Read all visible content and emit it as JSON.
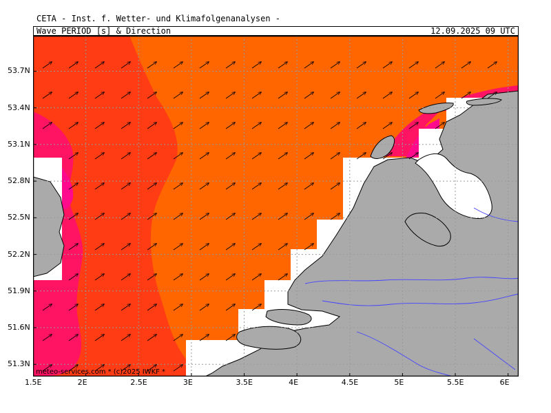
{
  "header": {
    "title": "CETA - Inst. f. Wetter- und Klimafolgenanalysen -",
    "parameter": "Wave_PERIOD [s] & Direction",
    "valid_time": "12.09.2025 09 UTC"
  },
  "credit": "meteo-services.com * (c)2025 IWKF *",
  "axes": {
    "lon_labels": [
      "1.5E",
      "2E",
      "2.5E",
      "3E",
      "3.5E",
      "4E",
      "4.5E",
      "5E",
      "5.5E",
      "6E"
    ],
    "lat_labels": [
      "53.7N",
      "53.4N",
      "53.1N",
      "52.8N",
      "52.5N",
      "52.2N",
      "51.9N",
      "51.6N",
      "51.3N"
    ],
    "lon_range": [
      1.5,
      6.1
    ],
    "lat_range": [
      51.2,
      53.99
    ],
    "grid": true
  },
  "colors": {
    "frame": "#000000",
    "land": "#aaaaaa",
    "coast": "#000000",
    "river": "#4444ff",
    "grid": "#999999",
    "band_orange": "#ff6600",
    "band_red": "#ff3c14",
    "band_magenta": "#ff1464",
    "band_pink": "#ff0a8c"
  },
  "wind_arrows": {
    "direction": "north-east"
  }
}
